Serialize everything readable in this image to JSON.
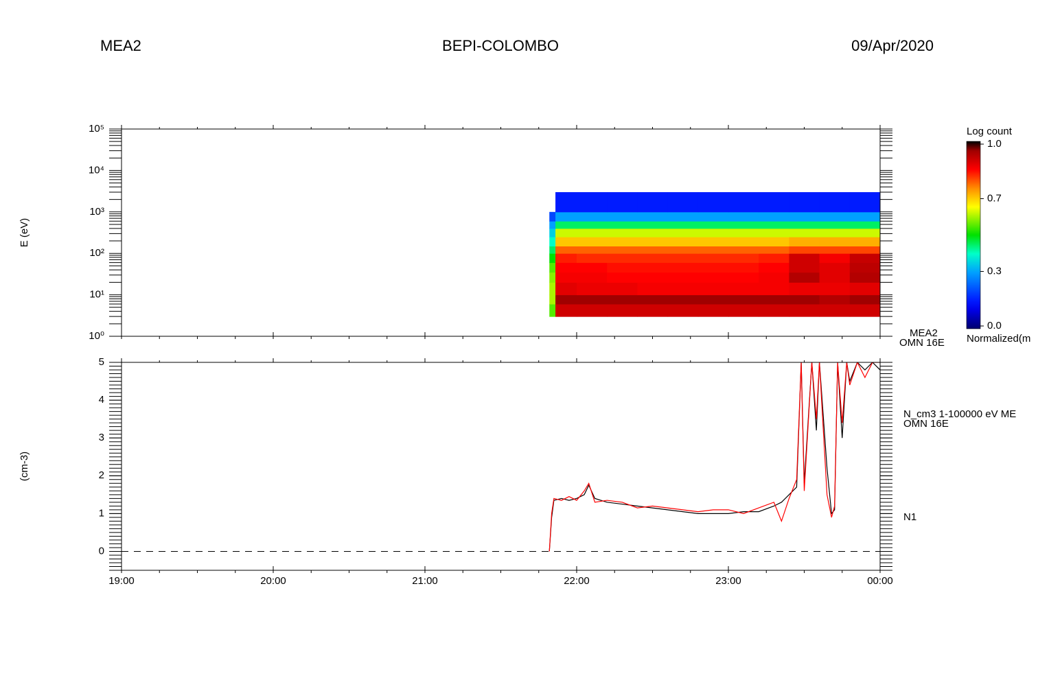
{
  "header": {
    "left": "MEA2",
    "center": "BEPI-COLOMBO",
    "right": "09/Apr/2020"
  },
  "chart_data": [
    {
      "type": "heatmap",
      "ylabel": "E (eV)",
      "side_labels": [
        "MEA2",
        "OMN 16E"
      ],
      "xlim": [
        19,
        24
      ],
      "ylog": true,
      "ylim": [
        1,
        100000
      ],
      "yticks": [
        {
          "value": 1,
          "label": "10⁰"
        },
        {
          "value": 10,
          "label": "10¹"
        },
        {
          "value": 100,
          "label": "10²"
        },
        {
          "value": 1000,
          "label": "10³"
        },
        {
          "value": 10000,
          "label": "10⁴"
        },
        {
          "value": 100000,
          "label": "10⁵"
        }
      ],
      "x_edges": [
        21.82,
        21.86,
        22.0,
        22.2,
        22.4,
        22.6,
        22.8,
        23.0,
        23.2,
        23.4,
        23.6,
        23.8,
        24.0
      ],
      "y_edges": [
        3,
        6,
        10,
        20,
        35,
        60,
        100,
        150,
        250,
        400,
        600,
        1000,
        3000
      ],
      "values": [
        [
          0.55,
          0.9,
          0.9,
          0.9,
          0.9,
          0.9,
          0.9,
          0.9,
          0.9,
          0.9,
          0.9,
          0.9
        ],
        [
          0.6,
          0.95,
          0.95,
          0.95,
          0.95,
          0.95,
          0.95,
          0.95,
          0.95,
          0.95,
          0.93,
          0.95
        ],
        [
          0.6,
          0.88,
          0.87,
          0.87,
          0.86,
          0.86,
          0.86,
          0.86,
          0.86,
          0.87,
          0.87,
          0.88
        ],
        [
          0.58,
          0.86,
          0.86,
          0.85,
          0.85,
          0.85,
          0.85,
          0.85,
          0.86,
          0.93,
          0.88,
          0.93
        ],
        [
          0.55,
          0.85,
          0.85,
          0.84,
          0.84,
          0.84,
          0.84,
          0.84,
          0.85,
          0.9,
          0.88,
          0.92
        ],
        [
          0.5,
          0.83,
          0.82,
          0.82,
          0.82,
          0.82,
          0.82,
          0.82,
          0.83,
          0.9,
          0.86,
          0.91
        ],
        [
          0.45,
          0.78,
          0.78,
          0.78,
          0.78,
          0.78,
          0.78,
          0.78,
          0.78,
          0.8,
          0.8,
          0.8
        ],
        [
          0.4,
          0.7,
          0.7,
          0.7,
          0.7,
          0.7,
          0.7,
          0.7,
          0.7,
          0.72,
          0.72,
          0.72
        ],
        [
          0.35,
          0.62,
          0.62,
          0.62,
          0.62,
          0.62,
          0.62,
          0.62,
          0.62,
          0.62,
          0.62,
          0.62
        ],
        [
          0.3,
          0.45,
          0.45,
          0.45,
          0.45,
          0.45,
          0.45,
          0.45,
          0.45,
          0.45,
          0.45,
          0.45
        ],
        [
          0.2,
          0.3,
          0.3,
          0.3,
          0.3,
          0.3,
          0.3,
          0.3,
          0.3,
          0.3,
          0.3,
          0.3
        ],
        [
          null,
          0.15,
          0.15,
          0.15,
          0.15,
          0.15,
          0.15,
          0.15,
          0.15,
          0.15,
          0.15,
          0.15
        ]
      ],
      "colormap": "rainbow",
      "colorbar": {
        "title": "Log count",
        "label": "Normalized(m",
        "clim": [
          0,
          1
        ],
        "ticks": [
          {
            "value": 0,
            "label": "0.0"
          },
          0.3,
          0.7,
          {
            "value": 1,
            "label": "1.0"
          }
        ]
      }
    },
    {
      "type": "line",
      "ylabel": "(cm-3)",
      "side_labels": [
        "N_cm3 1-100000 eV ME",
        "OMN 16E"
      ],
      "xlim": [
        19,
        24
      ],
      "xticks": [
        {
          "value": 19,
          "label": "19:00"
        },
        {
          "value": 20,
          "label": "20:00"
        },
        {
          "value": 21,
          "label": "21:00"
        },
        {
          "value": 22,
          "label": "22:00"
        },
        {
          "value": 23,
          "label": "23:00"
        },
        {
          "value": 24,
          "label": "00:00"
        }
      ],
      "ylim": [
        -0.5,
        5
      ],
      "yticks": [
        0,
        1,
        2,
        3,
        4,
        5
      ],
      "reference_line": {
        "value": 0,
        "style": "dashed"
      },
      "series": [
        {
          "color": "#000000",
          "x": [
            21.82,
            21.835,
            21.85,
            21.9,
            21.95,
            22.0,
            22.05,
            22.08,
            22.12,
            22.2,
            22.3,
            22.4,
            22.5,
            22.6,
            22.7,
            22.8,
            22.9,
            23.0,
            23.1,
            23.2,
            23.3,
            23.35,
            23.4,
            23.45,
            23.48,
            23.5,
            23.55,
            23.58,
            23.6,
            23.65,
            23.68,
            23.7,
            23.72,
            23.75,
            23.78,
            23.8,
            23.85,
            23.9,
            23.95,
            24.0
          ],
          "values": [
            0,
            0.9,
            1.35,
            1.4,
            1.35,
            1.4,
            1.5,
            1.75,
            1.4,
            1.3,
            1.25,
            1.2,
            1.15,
            1.1,
            1.05,
            1.0,
            1.0,
            1.0,
            1.05,
            1.05,
            1.2,
            1.3,
            1.5,
            1.7,
            5,
            1.8,
            5,
            3.2,
            5,
            2.2,
            1.0,
            1.1,
            5,
            3.0,
            5,
            4.5,
            5,
            4.8,
            5,
            4.8
          ]
        },
        {
          "name": "N1",
          "color": "#ff0000",
          "x": [
            21.82,
            21.835,
            21.85,
            21.9,
            21.95,
            22.0,
            22.05,
            22.08,
            22.12,
            22.2,
            22.3,
            22.4,
            22.5,
            22.6,
            22.7,
            22.8,
            22.9,
            23.0,
            23.1,
            23.2,
            23.3,
            23.35,
            23.4,
            23.45,
            23.48,
            23.5,
            23.55,
            23.58,
            23.6,
            23.65,
            23.68,
            23.7,
            23.72,
            23.75,
            23.78,
            23.8,
            23.85,
            23.9,
            23.95,
            24.0
          ],
          "values": [
            0,
            1.0,
            1.4,
            1.35,
            1.45,
            1.35,
            1.6,
            1.8,
            1.3,
            1.35,
            1.3,
            1.15,
            1.2,
            1.15,
            1.1,
            1.05,
            1.1,
            1.1,
            1.0,
            1.15,
            1.3,
            0.8,
            1.4,
            1.9,
            5,
            1.6,
            5,
            3.5,
            5,
            1.5,
            0.9,
            1.2,
            5,
            3.4,
            5,
            4.4,
            5,
            4.6,
            5,
            5
          ]
        }
      ]
    }
  ]
}
